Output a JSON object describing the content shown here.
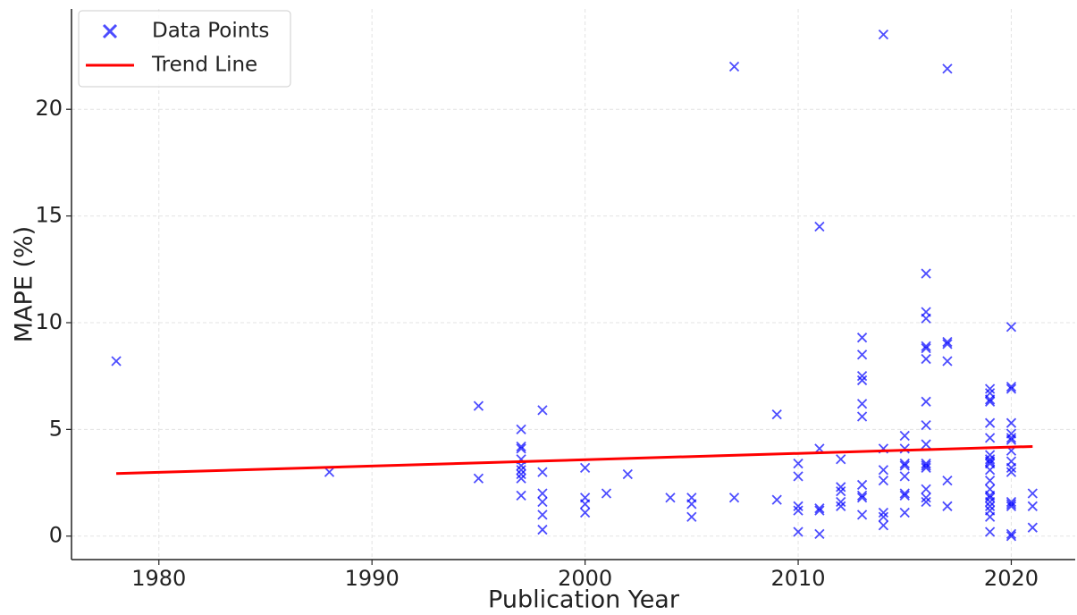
{
  "chart_data": {
    "type": "scatter",
    "xlabel": "Publication Year",
    "ylabel": "MAPE (%)",
    "xlim": [
      1975.9,
      2023.0
    ],
    "ylim": [
      -1.1,
      24.7
    ],
    "xticks": [
      1980,
      1990,
      2000,
      2010,
      2020
    ],
    "yticks": [
      0,
      5,
      10,
      15,
      20
    ],
    "grid": true,
    "legend": "upper left",
    "series": [
      {
        "name": "Data Points",
        "type": "scatter",
        "marker": "x",
        "color": "#0000ff",
        "x": [
          1978,
          1988,
          1995,
          1995,
          1997,
          1997,
          1997,
          1997,
          1997,
          1997,
          1997,
          1997,
          1997,
          1998,
          1998,
          1998,
          1998,
          1998,
          1998,
          2000,
          2000,
          2000,
          2000,
          2001,
          2002,
          2004,
          2005,
          2005,
          2005,
          2007,
          2007,
          2009,
          2009,
          2010,
          2010,
          2010,
          2010,
          2010,
          2011,
          2011,
          2011,
          2011,
          2011,
          2012,
          2012,
          2012,
          2012,
          2012,
          2013,
          2013,
          2013,
          2013,
          2013,
          2013,
          2013,
          2013,
          2013,
          2013,
          2014,
          2014,
          2014,
          2014,
          2014,
          2014,
          2014,
          2015,
          2015,
          2015,
          2015,
          2015,
          2015,
          2015,
          2015,
          2016,
          2016,
          2016,
          2016,
          2016,
          2016,
          2016,
          2016,
          2016,
          2016,
          2016,
          2016,
          2016,
          2016,
          2016,
          2017,
          2017,
          2017,
          2017,
          2017,
          2017,
          2019,
          2019,
          2019,
          2019,
          2019,
          2019,
          2019,
          2019,
          2019,
          2019,
          2019,
          2019,
          2019,
          2019,
          2019,
          2019,
          2019,
          2019,
          2019,
          2019,
          2020,
          2020,
          2020,
          2020,
          2020,
          2020,
          2020,
          2020,
          2020,
          2020,
          2020,
          2020,
          2020,
          2020,
          2020,
          2020,
          2021,
          2021,
          2021
        ],
        "values": [
          8.2,
          3.0,
          6.1,
          2.7,
          5.0,
          4.2,
          4.1,
          3.6,
          3.3,
          3.1,
          2.9,
          2.7,
          1.9,
          5.9,
          3.0,
          2.0,
          1.6,
          1.0,
          0.3,
          3.2,
          1.8,
          1.5,
          1.1,
          2.0,
          2.9,
          1.8,
          1.8,
          1.5,
          0.9,
          22.0,
          1.8,
          5.7,
          1.7,
          3.4,
          2.8,
          1.4,
          1.2,
          0.2,
          14.5,
          4.1,
          1.3,
          1.2,
          0.1,
          3.6,
          2.3,
          2.1,
          1.6,
          1.4,
          9.3,
          8.5,
          7.5,
          7.3,
          6.2,
          5.6,
          2.4,
          1.9,
          1.8,
          1.0,
          23.5,
          4.1,
          3.1,
          2.6,
          1.1,
          0.9,
          0.5,
          4.7,
          4.1,
          3.4,
          3.3,
          2.8,
          2.0,
          1.9,
          1.1,
          12.3,
          10.5,
          10.2,
          8.9,
          8.8,
          8.3,
          6.3,
          5.2,
          4.3,
          3.4,
          3.3,
          3.2,
          2.2,
          1.8,
          1.6,
          21.9,
          9.1,
          9.0,
          8.2,
          2.6,
          1.4,
          6.9,
          6.7,
          6.4,
          6.3,
          5.3,
          4.6,
          3.8,
          3.6,
          3.5,
          3.4,
          3.1,
          2.6,
          2.2,
          1.9,
          1.8,
          1.6,
          1.4,
          1.2,
          0.9,
          0.2,
          9.8,
          7.0,
          6.9,
          5.3,
          4.8,
          4.6,
          4.5,
          4.0,
          3.5,
          3.2,
          3.0,
          1.6,
          1.5,
          1.4,
          0.1,
          0.0,
          2.0,
          1.4,
          0.4
        ]
      },
      {
        "name": "Trend Line",
        "type": "line",
        "color": "#ff0000",
        "x": [
          1978,
          2021
        ],
        "values": [
          2.93,
          4.2
        ]
      }
    ]
  }
}
